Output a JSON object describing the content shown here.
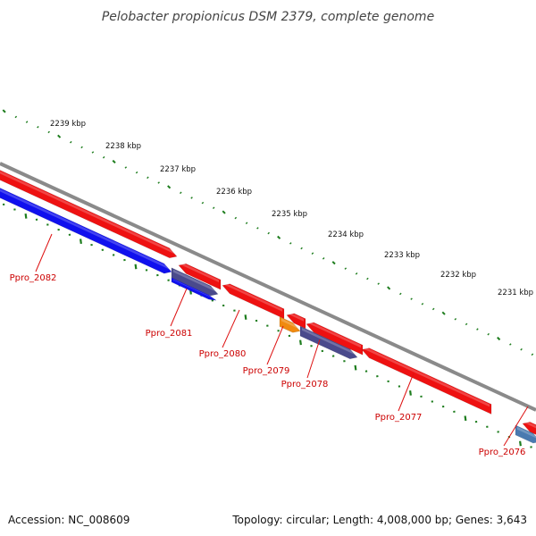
{
  "title": "Pelobacter propionicus DSM 2379, complete genome",
  "footer": {
    "accession": "Accession: NC_008609",
    "summary": "Topology: circular; Length: 4,008,000 bp; Genes: 3,643"
  },
  "scale_labels": [
    "2239 kbp",
    "2238 kbp",
    "2237 kbp",
    "2236 kbp",
    "2235 kbp",
    "2234 kbp",
    "2233 kbp",
    "2232 kbp",
    "2231 kbp"
  ],
  "colors": {
    "backbone": "#8a8a8a",
    "tick": "#1e7d1e",
    "label": "#cc0000",
    "leader": "#dd1111",
    "gene_red": "#ee1111",
    "gene_blue": "#1010ee",
    "gene_slate": "#4a4a8c",
    "gene_orange": "#f08a10",
    "gene_steel": "#4a7ab0"
  },
  "genes": [
    {
      "name": "Ppro_2082",
      "color": "#ee1111"
    },
    {
      "name": "Ppro_2082",
      "color": "#1010ee"
    },
    {
      "name": "Ppro_2081",
      "color": "#ee1111"
    },
    {
      "name": "Ppro_2081",
      "color": "#4a4a8c"
    },
    {
      "name": "Ppro_2081",
      "color": "#1010ee"
    },
    {
      "name": "Ppro_2080",
      "color": "#ee1111"
    },
    {
      "name": "Ppro_2079",
      "color": "#ee1111"
    },
    {
      "name": "Ppro_2079",
      "color": "#f08a10"
    },
    {
      "name": "Ppro_2078",
      "color": "#4a4a8c"
    },
    {
      "name": "Ppro_2078",
      "color": "#ee1111"
    },
    {
      "name": "Ppro_2077",
      "color": "#ee1111"
    },
    {
      "name": "Ppro_2076",
      "color": "#ee1111"
    },
    {
      "name": "Ppro_2076",
      "color": "#4a7ab0"
    }
  ],
  "gene_labels": [
    "Ppro_2082",
    "Ppro_2081",
    "Ppro_2080",
    "Ppro_2079",
    "Ppro_2078",
    "Ppro_2077",
    "Ppro_2076"
  ]
}
